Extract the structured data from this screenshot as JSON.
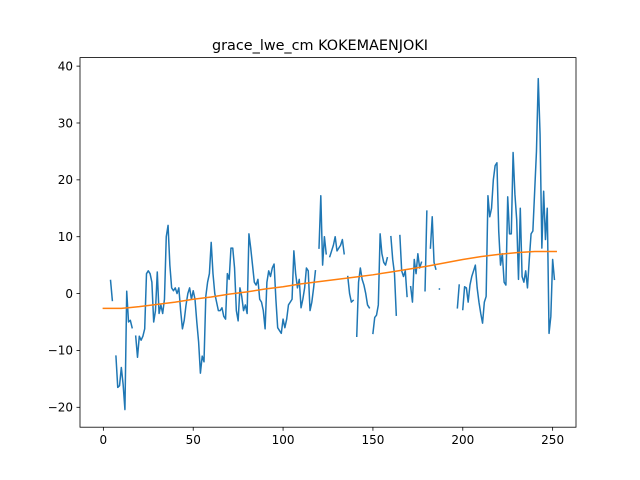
{
  "chart_data": {
    "type": "line",
    "title": "grace_lwe_cm KOKEMAENJOKI",
    "xlabel": "",
    "ylabel": "",
    "xlim": [
      -13,
      263
    ],
    "ylim": [
      -23.5,
      41.5
    ],
    "xticks": [
      0,
      50,
      100,
      150,
      200,
      250
    ],
    "yticks": [
      -20,
      -10,
      0,
      10,
      20,
      30,
      40
    ],
    "xtick_labels": [
      "0",
      "50",
      "100",
      "150",
      "200",
      "250"
    ],
    "ytick_labels": [
      "−20",
      "−10",
      "0",
      "10",
      "20",
      "30",
      "40"
    ],
    "grid": false,
    "series": [
      {
        "color": "#1f77b4",
        "segments": [
          [
            [
              4,
              2.3
            ],
            [
              5,
              -1.2
            ]
          ],
          [
            [
              7,
              -11
            ],
            [
              8,
              -16.5
            ],
            [
              9,
              -16.2
            ],
            [
              10,
              -13
            ],
            [
              11,
              -16
            ],
            [
              12,
              -20.4
            ],
            [
              13,
              0.4
            ],
            [
              14,
              -5
            ],
            [
              15,
              -4.7
            ],
            [
              16,
              -6
            ]
          ],
          [
            [
              18,
              -7.5
            ],
            [
              19,
              -11.2
            ],
            [
              20,
              -7.5
            ],
            [
              21,
              -8.2
            ],
            [
              22,
              -7.5
            ],
            [
              23,
              -6.2
            ],
            [
              24,
              3.5
            ],
            [
              25,
              4
            ],
            [
              26,
              3.5
            ],
            [
              27,
              2
            ],
            [
              28,
              -5
            ],
            [
              29,
              -3
            ],
            [
              30,
              3.8
            ],
            [
              31,
              -3.5
            ],
            [
              32,
              -2
            ],
            [
              33,
              -3.5
            ],
            [
              34,
              -1
            ],
            [
              35,
              10
            ],
            [
              36,
              12
            ],
            [
              37,
              5
            ],
            [
              38,
              1
            ],
            [
              39,
              0.5
            ],
            [
              40,
              1
            ],
            [
              41,
              0
            ],
            [
              42,
              1
            ],
            [
              43,
              -3
            ],
            [
              44,
              -6.2
            ],
            [
              45,
              -4.7
            ],
            [
              46,
              -2
            ],
            [
              47,
              0
            ],
            [
              48,
              1
            ],
            [
              49,
              -1
            ],
            [
              50,
              0.5
            ],
            [
              51,
              -1
            ],
            [
              52,
              -5
            ],
            [
              53,
              -8.5
            ],
            [
              54,
              -14
            ],
            [
              55,
              -11
            ],
            [
              56,
              -12
            ],
            [
              57,
              -0.5
            ],
            [
              58,
              2
            ],
            [
              59,
              3.5
            ],
            [
              60,
              9
            ],
            [
              61,
              3.5
            ],
            [
              62,
              0
            ],
            [
              63,
              -1.5
            ],
            [
              64,
              -3
            ],
            [
              65,
              -3
            ],
            [
              66,
              -2.5
            ],
            [
              67,
              -4
            ],
            [
              68,
              -4.5
            ],
            [
              69,
              3.5
            ],
            [
              70,
              2.5
            ],
            [
              71,
              8
            ],
            [
              72,
              8
            ],
            [
              73,
              4.5
            ],
            [
              74,
              -3
            ],
            [
              75,
              -4.8
            ],
            [
              76,
              1
            ],
            [
              77,
              -0.5
            ],
            [
              78,
              -3
            ],
            [
              79,
              -2
            ],
            [
              80,
              -3.5
            ],
            [
              81,
              10.5
            ],
            [
              82,
              8
            ],
            [
              83,
              5
            ],
            [
              84,
              2
            ],
            [
              85,
              1.5
            ],
            [
              86,
              2.5
            ],
            [
              87,
              -1
            ],
            [
              88,
              -1.5
            ],
            [
              89,
              -3
            ],
            [
              90,
              -6.2
            ],
            [
              91,
              2
            ],
            [
              92,
              4
            ],
            [
              93,
              3
            ],
            [
              94,
              4.5
            ],
            [
              95,
              5.2
            ],
            [
              96,
              -1
            ],
            [
              97,
              -6
            ],
            [
              98,
              -6.5
            ],
            [
              99,
              -7
            ],
            [
              100,
              -4.5
            ],
            [
              101,
              -6
            ],
            [
              102,
              -4.5
            ],
            [
              103,
              -2
            ],
            [
              104,
              -1.5
            ],
            [
              105,
              -1
            ],
            [
              106,
              7.5
            ],
            [
              107,
              3.5
            ],
            [
              108,
              1
            ],
            [
              109,
              2.5
            ],
            [
              110,
              -2.5
            ],
            [
              111,
              -1
            ],
            [
              112,
              1
            ],
            [
              113,
              4.5
            ],
            [
              114,
              4
            ],
            [
              115,
              -3
            ],
            [
              116,
              -1.5
            ],
            [
              117,
              1
            ],
            [
              118,
              4
            ]
          ],
          [
            [
              120,
              8
            ],
            [
              121,
              17.2
            ],
            [
              122,
              5
            ],
            [
              123,
              10
            ],
            [
              124,
              7
            ]
          ],
          [
            [
              126,
              6.5
            ],
            [
              127,
              7.5
            ],
            [
              128,
              8.5
            ],
            [
              129,
              10
            ],
            [
              130,
              7.5
            ],
            [
              131,
              8
            ],
            [
              132,
              8.5
            ],
            [
              133,
              9.5
            ],
            [
              134,
              7
            ]
          ],
          [
            [
              136,
              3
            ],
            [
              137,
              0
            ],
            [
              138,
              -1.5
            ],
            [
              139,
              -1.2
            ]
          ],
          [
            [
              141,
              -7.5
            ],
            [
              142,
              2
            ],
            [
              143,
              4.5
            ],
            [
              144,
              2.5
            ],
            [
              145,
              1.5
            ],
            [
              146,
              0
            ],
            [
              147,
              -2
            ],
            [
              148,
              -2.5
            ]
          ],
          [
            [
              150,
              -7
            ],
            [
              151,
              -4.2
            ],
            [
              152,
              -3.8
            ],
            [
              153,
              -2
            ],
            [
              154,
              10.5
            ],
            [
              155,
              7
            ],
            [
              156,
              5.5
            ],
            [
              157,
              5
            ],
            [
              158,
              6.3
            ]
          ],
          [
            [
              160,
              10
            ],
            [
              161,
              6
            ],
            [
              162,
              3.5
            ],
            [
              163,
              -3.8
            ]
          ],
          [
            [
              165,
              10.2
            ],
            [
              166,
              4
            ],
            [
              167,
              3
            ],
            [
              168,
              4
            ],
            [
              169,
              -0.5
            ]
          ],
          [
            [
              171,
              1.2
            ],
            [
              172,
              -1.5
            ],
            [
              173,
              6
            ],
            [
              174,
              3.5
            ],
            [
              175,
              7
            ],
            [
              176,
              4.5
            ],
            [
              177,
              5.5
            ]
          ],
          [
            [
              179,
              0.5
            ],
            [
              180,
              14.5
            ]
          ],
          [
            [
              182,
              8
            ],
            [
              183,
              13.5
            ],
            [
              184,
              5.5
            ],
            [
              185,
              4.3
            ]
          ],
          [
            [
              187,
              0.8
            ]
          ],
          [
            [
              197,
              -2.5
            ],
            [
              198,
              1.5
            ]
          ],
          [
            [
              200,
              -2.8
            ],
            [
              201,
              1.2
            ],
            [
              202,
              1
            ],
            [
              203,
              -1.5
            ],
            [
              204,
              1.5
            ],
            [
              205,
              3
            ],
            [
              206,
              4
            ],
            [
              207,
              5
            ],
            [
              208,
              1
            ],
            [
              209,
              -1.5
            ],
            [
              210,
              -3.5
            ],
            [
              211,
              -5.2
            ],
            [
              212,
              -1.5
            ],
            [
              213,
              -0.5
            ],
            [
              214,
              17.2
            ],
            [
              215,
              13.5
            ],
            [
              216,
              15
            ],
            [
              217,
              20
            ],
            [
              218,
              22.5
            ],
            [
              219,
              23
            ],
            [
              220,
              11
            ],
            [
              221,
              5
            ],
            [
              222,
              7
            ],
            [
              223,
              2
            ],
            [
              224,
              1.5
            ],
            [
              225,
              17
            ],
            [
              226,
              10.5
            ],
            [
              227,
              10.5
            ],
            [
              228,
              24.8
            ],
            [
              229,
              17.5
            ],
            [
              230,
              13
            ],
            [
              231,
              2.5
            ],
            [
              232,
              15
            ],
            [
              233,
              3
            ],
            [
              234,
              2
            ],
            [
              235,
              4
            ],
            [
              236,
              1
            ],
            [
              237,
              6
            ],
            [
              238,
              10.5
            ],
            [
              239,
              11
            ],
            [
              240,
              18
            ],
            [
              241,
              25
            ],
            [
              242,
              37.8
            ],
            [
              243,
              28
            ],
            [
              244,
              8
            ],
            [
              245,
              18
            ],
            [
              246,
              9.5
            ],
            [
              247,
              15
            ],
            [
              248,
              -7
            ],
            [
              249,
              -4
            ],
            [
              250,
              6
            ],
            [
              251,
              2.5
            ]
          ]
        ]
      },
      {
        "color": "#ff7f0e",
        "segments": [
          [
            [
              0,
              -2.6
            ],
            [
              10,
              -2.6
            ],
            [
              20,
              -2.3
            ],
            [
              30,
              -1.9
            ],
            [
              40,
              -1.5
            ],
            [
              50,
              -1.0
            ],
            [
              60,
              -0.6
            ],
            [
              70,
              -0.1
            ],
            [
              80,
              0.3
            ],
            [
              90,
              0.8
            ],
            [
              100,
              1.2
            ],
            [
              110,
              1.7
            ],
            [
              120,
              2.1
            ],
            [
              130,
              2.5
            ],
            [
              140,
              2.9
            ],
            [
              150,
              3.3
            ],
            [
              160,
              3.8
            ],
            [
              170,
              4.3
            ],
            [
              180,
              4.8
            ],
            [
              190,
              5.4
            ],
            [
              200,
              6.0
            ],
            [
              210,
              6.5
            ],
            [
              220,
              6.9
            ],
            [
              230,
              7.2
            ],
            [
              240,
              7.4
            ],
            [
              250,
              7.4
            ],
            [
              252,
              7.4
            ]
          ]
        ]
      }
    ]
  }
}
